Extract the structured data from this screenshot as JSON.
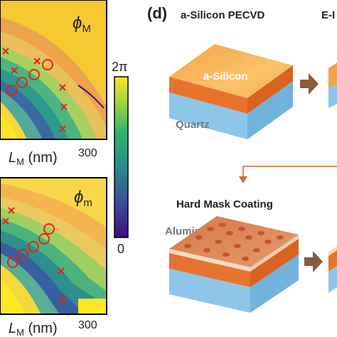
{
  "figure": {
    "panels": [
      {
        "id": "phase-map-top",
        "corner_label": "ϕ",
        "corner_label_sub": "M",
        "x_axis_label": "L",
        "x_axis_label_sub": "M",
        "x_axis_unit": " (nm)",
        "x_tick_max": "300",
        "circle_markers": 4,
        "cross_markers": 6
      },
      {
        "id": "phase-map-bottom",
        "corner_label": "ϕ",
        "corner_label_sub": "m",
        "x_axis_label": "L",
        "x_axis_label_sub": "M",
        "x_axis_unit": " (nm)",
        "x_tick_max": "300",
        "circle_markers": 5,
        "cross_markers": 4
      }
    ],
    "colorbar": {
      "max_label": "2π",
      "min_label": "0",
      "colormap": [
        "#3d0e82",
        "#3c4a9c",
        "#2a8c8a",
        "#2fb36f",
        "#a5d63b",
        "#fde725"
      ]
    },
    "process": {
      "panel_letter": "(d)",
      "step1_title": "a-Silicon PECVD",
      "step1_layer_top": "a-Silicon",
      "step1_layer_bottom": "Quartz",
      "step2_title_partial": "E-I",
      "step3_title": "Hard Mask Coating",
      "step3_layer_label": "Alumina"
    },
    "colors": {
      "silicon": "#e8732e",
      "quartz": "#8ec6ea",
      "alumina": "#f0dcc8",
      "arrow": "#8b5a3c",
      "marker": "#e2231a"
    }
  }
}
